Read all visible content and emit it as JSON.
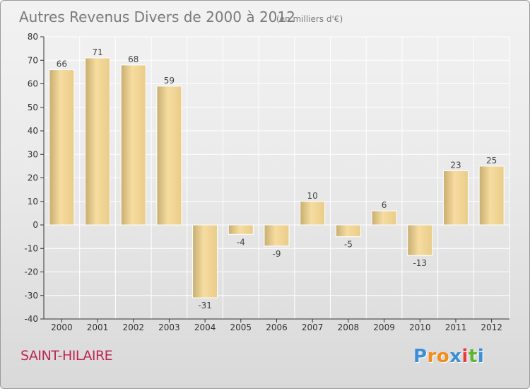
{
  "chart_data": {
    "type": "bar",
    "title": "Autres Revenus Divers de 2000 à 2012",
    "subtitle": "(en milliers d'€)",
    "categories": [
      "2000",
      "2001",
      "2002",
      "2003",
      "2004",
      "2005",
      "2006",
      "2007",
      "2008",
      "2009",
      "2010",
      "2011",
      "2012"
    ],
    "values": [
      66,
      71,
      68,
      59,
      -31,
      -4,
      -9,
      10,
      -5,
      6,
      -13,
      23,
      25
    ],
    "data_labels": [
      "66",
      "71",
      "68",
      "59",
      "-31",
      "-4",
      "-9",
      "10",
      "-5",
      "6",
      "-13",
      "23",
      "25"
    ],
    "yticks": [
      80,
      70,
      60,
      50,
      40,
      30,
      20,
      10,
      0,
      -10,
      -20,
      -30,
      -40
    ],
    "ylim": [
      -40,
      80
    ],
    "xlabel": "",
    "ylabel": "",
    "grid": true,
    "legend": "none",
    "colors": {
      "bar_light": "#f6dca0",
      "bar_dark": "#c7ae70",
      "grid": "#ffffff",
      "axis": "#333333"
    }
  },
  "footer": {
    "location": "SAINT-HILAIRE",
    "brand": {
      "letters": [
        "P",
        "r",
        "o",
        "x",
        "i",
        "t",
        "i"
      ],
      "colors": [
        "#3a8fd6",
        "#f28c1c",
        "#f28c1c",
        "#3a8fd6",
        "#e83c3c",
        "#5cb531",
        "#3a8fd6"
      ]
    }
  }
}
